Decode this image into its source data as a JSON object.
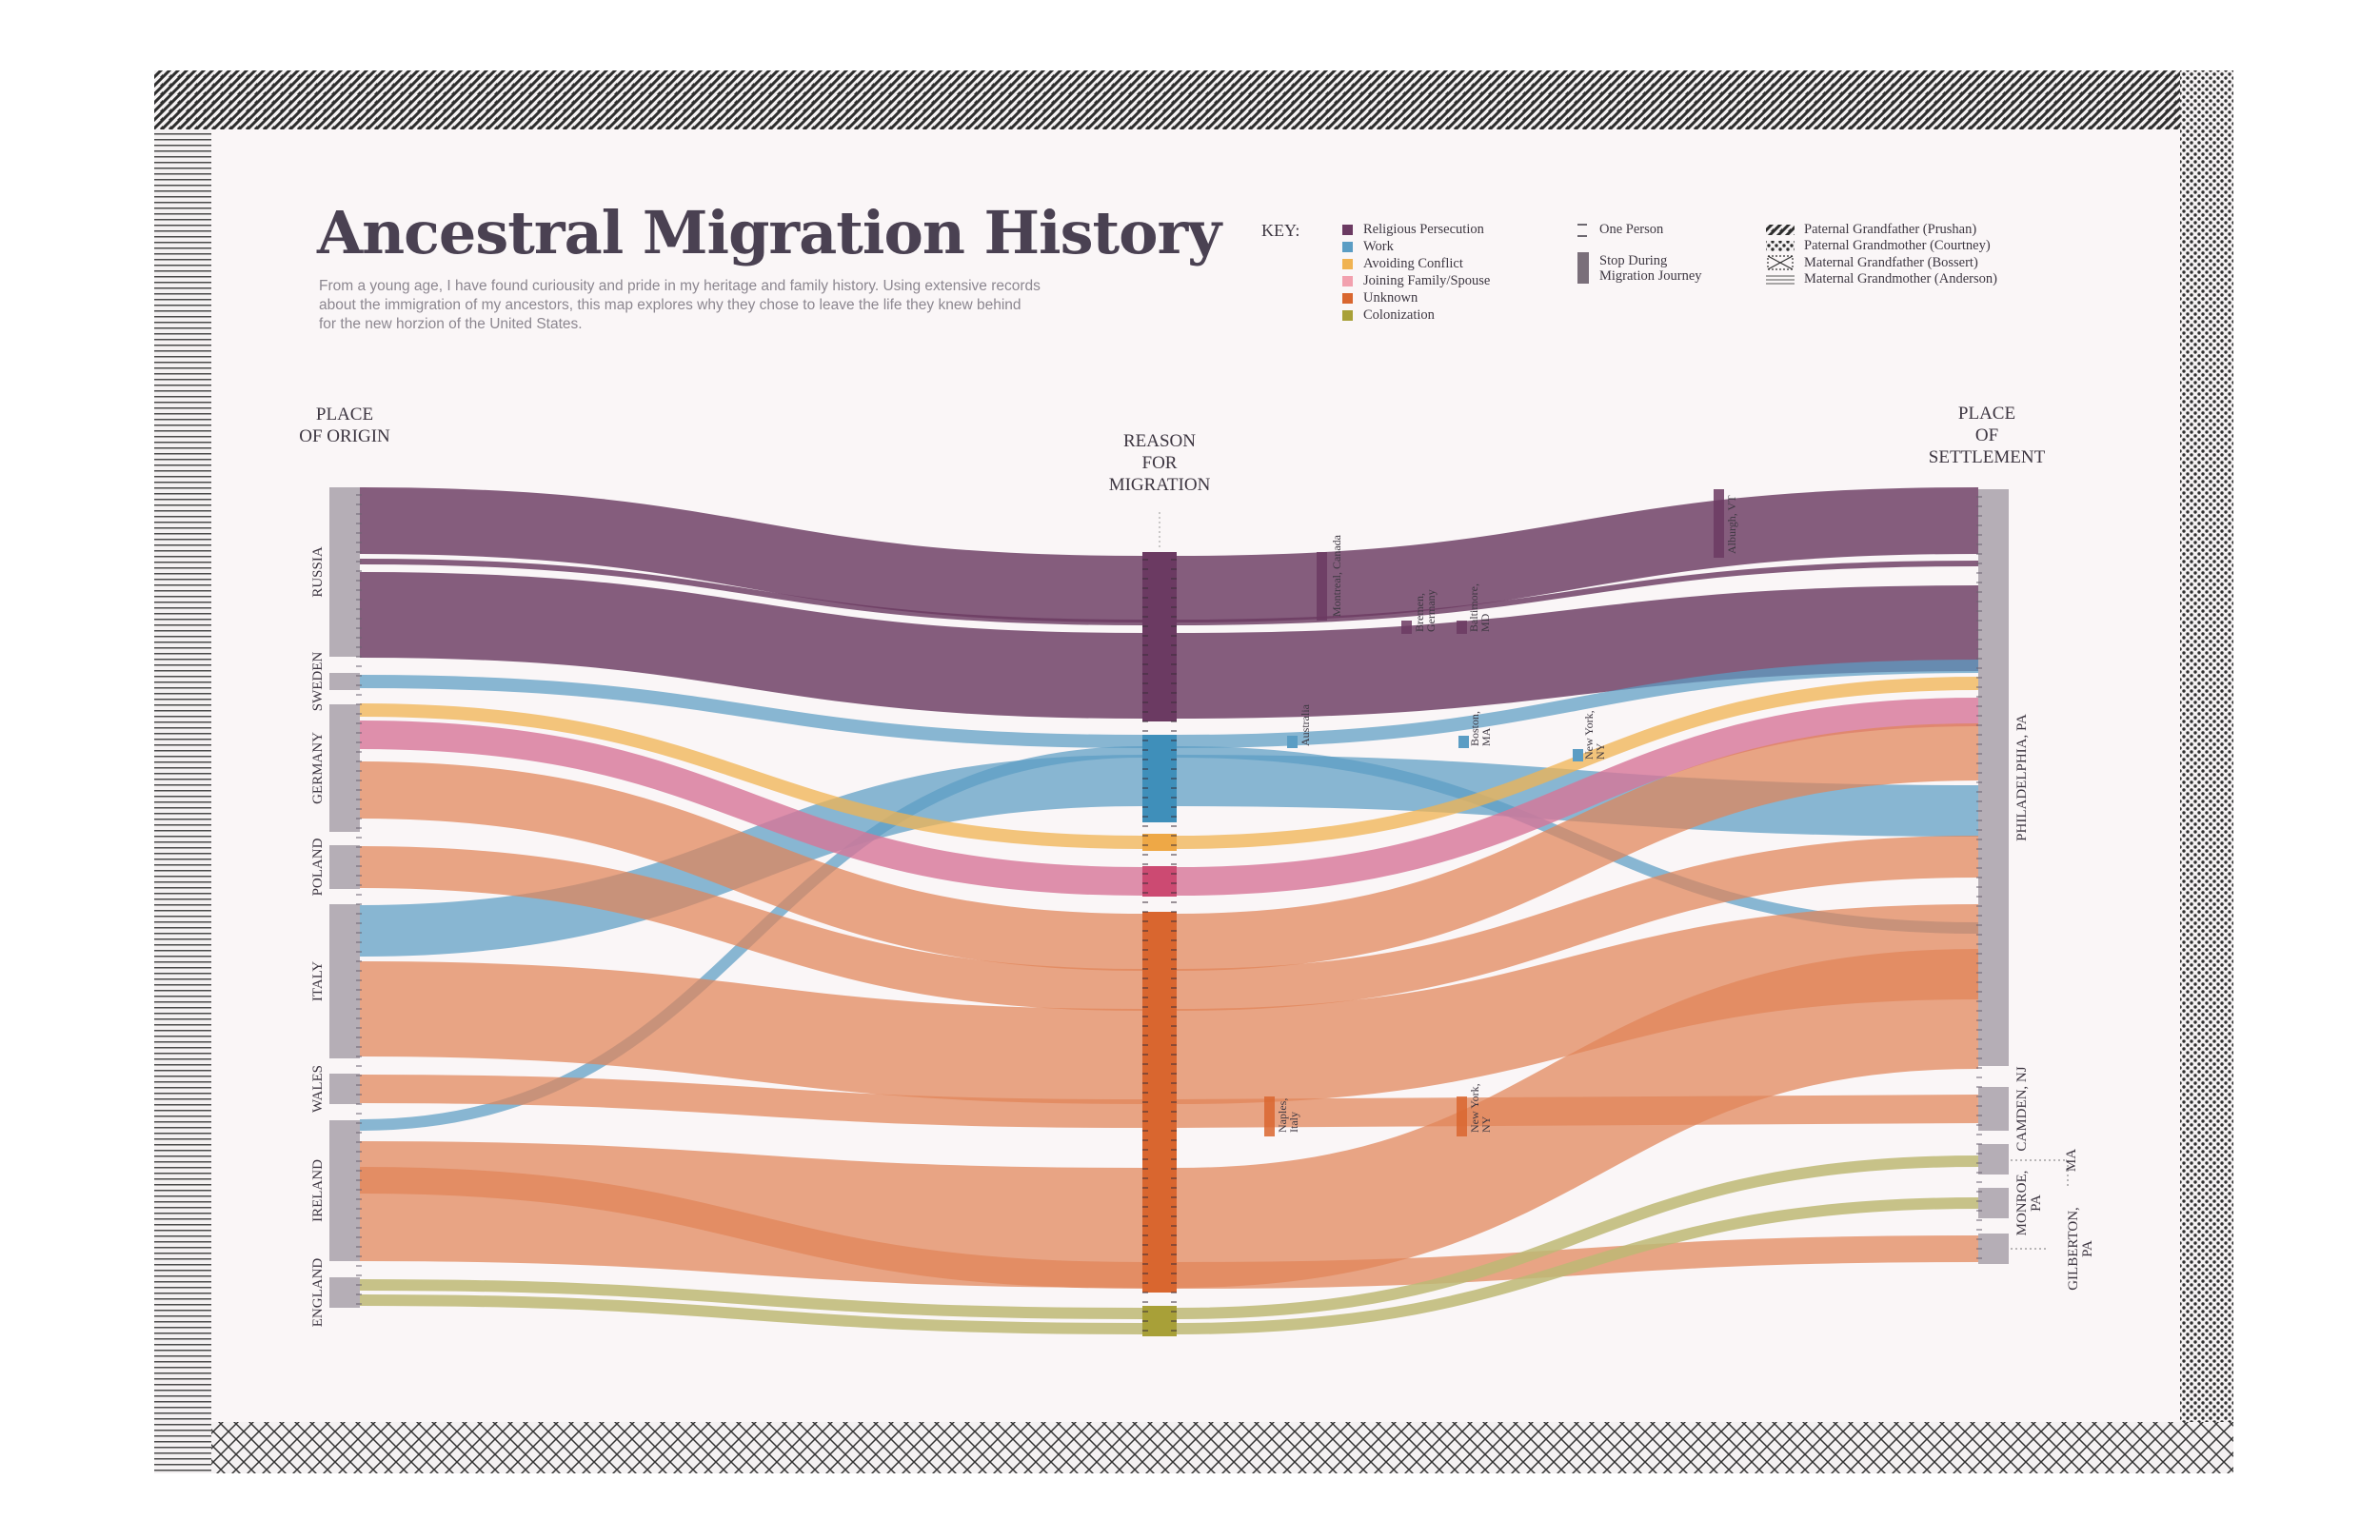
{
  "title": "Ancestral Migration History",
  "subtitle_lines": [
    "From a young age, I have found curiousity and pride in my heritage and family history. Using extensive records",
    "about the immigration of my ancestors, this map explores why they chose to leave the life they knew behind",
    "for the new horzion of the United States."
  ],
  "headers": {
    "origin": [
      "PLACE",
      "OF ORIGIN"
    ],
    "reason": [
      "REASON",
      "FOR",
      "MIGRATION"
    ],
    "settlement": [
      "PLACE",
      "OF",
      "SETTLEMENT"
    ]
  },
  "key": {
    "label": "KEY:",
    "reasons": [
      {
        "label": "Religious Persecution",
        "color": "#6b3a62"
      },
      {
        "label": "Work",
        "color": "#5b9dc4"
      },
      {
        "label": "Avoiding Conflict",
        "color": "#f0b352"
      },
      {
        "label": "Joining Family/Spouse",
        "color": "#f2a0ae"
      },
      {
        "label": "Unknown",
        "color": "#d9662f"
      },
      {
        "label": "Colonization",
        "color": "#a8a038"
      }
    ],
    "one_person": "One Person",
    "stop": [
      "Stop During",
      "Migration Journey"
    ],
    "grandparents": [
      {
        "label": "Paternal Grandfather (Prushan)",
        "icon": "diagonal-hatch-icon"
      },
      {
        "label": "Paternal Grandmother (Courtney)",
        "icon": "dots-icon"
      },
      {
        "label": "Maternal Grandfather (Bossert)",
        "icon": "crosshatch-icon"
      },
      {
        "label": "Maternal Grandmother (Anderson)",
        "icon": "horizontal-lines-icon"
      }
    ]
  },
  "origins": [
    "RUSSIA",
    "SWEDEN",
    "GERMANY",
    "POLAND",
    "ITALY",
    "WALES",
    "IRELAND",
    "ENGLAND"
  ],
  "settlements": {
    "philadelphia": "PHILADELPHIA, PA",
    "camden": "CAMDEN, NJ",
    "monroe": [
      "MONROE,",
      "PA"
    ],
    "ma": "MA",
    "gilberton": [
      "GILBERTON,",
      "PA"
    ]
  },
  "stops": [
    [
      "Montreal, Canada"
    ],
    [
      "Bremen,",
      "Germany"
    ],
    [
      "Baltimore,",
      "MD"
    ],
    [
      "Alburgh, VT"
    ],
    [
      "Australia"
    ],
    [
      "Boston,",
      "MA"
    ],
    [
      "New York,",
      "NY"
    ],
    [
      "Naples,",
      "Italy"
    ],
    [
      "New York,",
      "NY"
    ]
  ],
  "chart_data": {
    "type": "sankey",
    "unit": "One Person",
    "flows": [
      {
        "from": "RUSSIA",
        "reason": "Religious Persecution",
        "to": "PHILADELPHIA, PA",
        "people": 18
      },
      {
        "from": "SWEDEN",
        "reason": "Work",
        "to": "PHILADELPHIA, PA",
        "people": 2
      },
      {
        "from": "GERMANY",
        "reason": "Avoiding Conflict",
        "to": "PHILADELPHIA, PA",
        "people": 2
      },
      {
        "from": "GERMANY",
        "reason": "Joining Family/Spouse",
        "to": "PHILADELPHIA, PA",
        "people": 3
      },
      {
        "from": "GERMANY",
        "reason": "Unknown",
        "to": "PHILADELPHIA, PA",
        "people": 5
      },
      {
        "from": "POLAND",
        "reason": "Unknown",
        "to": "PHILADELPHIA, PA",
        "people": 4
      },
      {
        "from": "ITALY",
        "reason": "Work",
        "to": "PHILADELPHIA, PA",
        "people": 5
      },
      {
        "from": "ITALY",
        "reason": "Unknown",
        "to": "PHILADELPHIA, PA",
        "people": 9
      },
      {
        "from": "WALES",
        "reason": "Unknown",
        "to": "PHILADELPHIA, PA",
        "people": 3
      },
      {
        "from": "IRELAND",
        "reason": "Work",
        "to": "PHILADELPHIA, PA",
        "people": 2
      },
      {
        "from": "IRELAND",
        "reason": "Unknown",
        "to": "PHILADELPHIA, PA",
        "people": 14
      },
      {
        "from": "ENGLAND",
        "reason": "Colonization",
        "to": "MONROE, PA",
        "people": 3
      }
    ]
  }
}
